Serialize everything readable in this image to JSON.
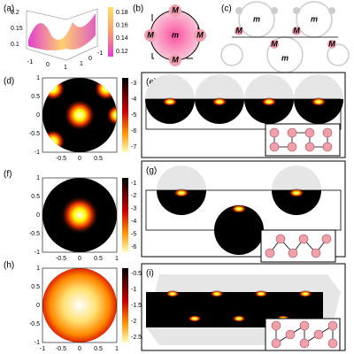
{
  "a": {
    "label": "(a)",
    "z_ticks": [
      "0.2",
      "0.15",
      "0.1"
    ],
    "x_ticks": [
      "-1",
      "0",
      "1"
    ],
    "y_ticks": [
      "1",
      "0",
      "-1"
    ],
    "colorbar_ticks": [
      "0.18",
      "0.16",
      "0.14",
      "0.12"
    ]
  },
  "b": {
    "label": "(b)",
    "edge_labels": [
      "M",
      "M",
      "M",
      "M"
    ],
    "center_label": "m"
  },
  "c": {
    "label": "(c)",
    "labels": [
      "m",
      "m",
      "M",
      "M",
      "M",
      "M",
      "m"
    ]
  },
  "d": {
    "label": "(d)",
    "y_ticks": [
      "1",
      "0.5",
      "0",
      "-0.5",
      "-1"
    ],
    "x_ticks": [
      "-0.5",
      "0",
      "0.5"
    ],
    "colorbar_ticks": [
      "-3",
      "-4",
      "-5",
      "-6",
      "-7"
    ]
  },
  "e": {
    "label": "(e)"
  },
  "f": {
    "label": "(f)",
    "y_ticks": [
      "1",
      "0.5",
      "0",
      "-0.5",
      "-1"
    ],
    "x_ticks": [
      "-0.5",
      "0",
      "0.5",
      "1"
    ],
    "colorbar_ticks": [
      "-1",
      "-2",
      "-3",
      "-4",
      "-5",
      "-6"
    ]
  },
  "g": {
    "label": "(g)"
  },
  "h": {
    "label": "(h)",
    "y_ticks": [
      "1",
      "0.5",
      "0",
      "-0.5",
      "-1"
    ],
    "x_ticks": [
      "-1",
      "-0.5",
      "0",
      "0.5",
      "1"
    ],
    "colorbar_ticks": [
      "-0.5",
      "-1",
      "-1.5",
      "-2",
      "-2.5"
    ]
  },
  "i": {
    "label": "(i)"
  }
}
